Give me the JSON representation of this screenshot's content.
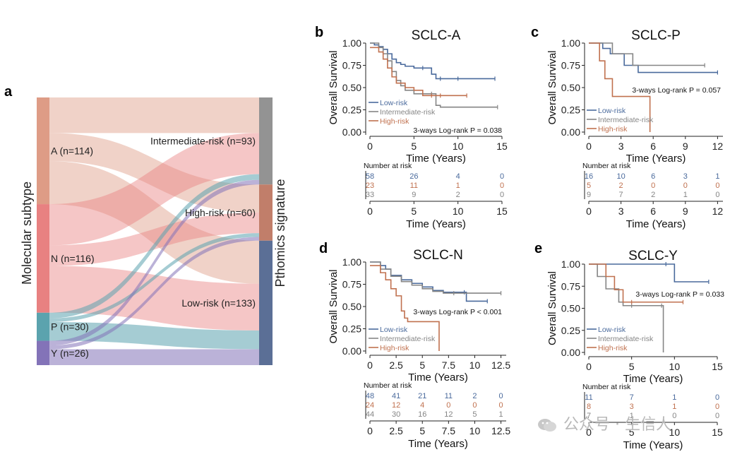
{
  "panel_a": {
    "letter": "a",
    "left_axis_label": "Molecular subtype",
    "right_axis_label": "Pthomics signature",
    "left_nodes": [
      {
        "label": "A (n=114)",
        "color": "#de9c86"
      },
      {
        "label": "N (n=116)",
        "color": "#e88181"
      },
      {
        "label": "P (n=30)",
        "color": "#5ba3ae"
      },
      {
        "label": "Y (n=26)",
        "color": "#8373b8"
      }
    ],
    "right_nodes": [
      {
        "label": "Intermediate-risk (n=93)",
        "color": "#939393"
      },
      {
        "label": "High-risk (n=60)",
        "color": "#c17e6a"
      },
      {
        "label": "Low-risk (n=133)",
        "color": "#5b6f96"
      }
    ],
    "flows": [
      {
        "from": 0,
        "to": 0,
        "value": 38
      },
      {
        "from": 0,
        "to": 1,
        "value": 30
      },
      {
        "from": 0,
        "to": 2,
        "value": 46
      },
      {
        "from": 1,
        "to": 0,
        "value": 44
      },
      {
        "from": 1,
        "to": 1,
        "value": 22
      },
      {
        "from": 1,
        "to": 2,
        "value": 50
      },
      {
        "from": 2,
        "to": 0,
        "value": 6
      },
      {
        "from": 2,
        "to": 1,
        "value": 4
      },
      {
        "from": 2,
        "to": 2,
        "value": 20
      },
      {
        "from": 3,
        "to": 0,
        "value": 5
      },
      {
        "from": 3,
        "to": 1,
        "value": 4
      },
      {
        "from": 3,
        "to": 2,
        "value": 17
      }
    ]
  },
  "km_common": {
    "ylabel": "Overall Survival",
    "xlabel": "Time (Years)",
    "risk_title": "Number at risk",
    "legend": [
      "Low-risk",
      "Intermediate-risk",
      "High-risk"
    ],
    "colors": {
      "low": "#4a6a9c",
      "intermediate": "#858585",
      "high": "#c0714f"
    },
    "yticks": [
      "0.00",
      "0.25",
      "0.50",
      "0.75",
      "1.00"
    ]
  },
  "chart_data": [
    {
      "type": "line",
      "panel": "b",
      "title": "SCLC-A",
      "xlim": [
        0,
        15
      ],
      "ylim": [
        0,
        1
      ],
      "xticks": [
        0,
        5,
        10,
        15
      ],
      "annotation": "3-ways Log-rank P = 0.038",
      "series": [
        {
          "name": "Low-risk",
          "x": [
            0,
            0.5,
            1,
            1.5,
            2,
            2.5,
            3,
            3.5,
            4,
            5,
            6,
            7,
            7.5,
            8,
            10,
            14.2
          ],
          "y": [
            1,
            0.98,
            0.96,
            0.93,
            0.88,
            0.82,
            0.78,
            0.76,
            0.74,
            0.72,
            0.72,
            0.65,
            0.6,
            0.6,
            0.6,
            0.6
          ]
        },
        {
          "name": "Intermediate-risk",
          "x": [
            0,
            1,
            1.5,
            2,
            2.5,
            3,
            3.5,
            4,
            5,
            6,
            7,
            7.5,
            8,
            14.5
          ],
          "y": [
            1,
            0.95,
            0.88,
            0.8,
            0.68,
            0.58,
            0.52,
            0.47,
            0.43,
            0.43,
            0.43,
            0.3,
            0.28,
            0.28
          ]
        },
        {
          "name": "High-risk",
          "x": [
            0,
            1,
            1.5,
            2,
            2.5,
            3,
            4,
            5,
            6,
            7,
            8,
            11
          ],
          "y": [
            0.95,
            0.9,
            0.82,
            0.72,
            0.62,
            0.55,
            0.5,
            0.47,
            0.41,
            0.41,
            0.41,
            0.41
          ]
        }
      ],
      "risk_table": {
        "times": [
          0,
          5,
          10,
          15
        ],
        "rows": [
          [
            58,
            26,
            4,
            0
          ],
          [
            23,
            11,
            1,
            0
          ],
          [
            33,
            9,
            2,
            0
          ]
        ]
      }
    },
    {
      "type": "line",
      "panel": "c",
      "title": "SCLC-P",
      "xlim": [
        0,
        12.5
      ],
      "ylim": [
        0,
        1
      ],
      "xticks": [
        0,
        3,
        6,
        9,
        12
      ],
      "annotation": "3-ways Log-rank P = 0.057",
      "series": [
        {
          "name": "Low-risk",
          "x": [
            0,
            1.3,
            2,
            3.3,
            4.6,
            12
          ],
          "y": [
            1,
            0.94,
            0.88,
            0.75,
            0.67,
            0.67
          ]
        },
        {
          "name": "Intermediate-risk",
          "x": [
            0,
            2.2,
            4.1,
            10.8
          ],
          "y": [
            1,
            0.88,
            0.75,
            0.75
          ]
        },
        {
          "name": "High-risk",
          "x": [
            0,
            1,
            1.5,
            2.2,
            5.7
          ],
          "y": [
            1,
            0.8,
            0.6,
            0.4,
            0
          ]
        }
      ],
      "risk_table": {
        "times": [
          0,
          3,
          6,
          9,
          12
        ],
        "rows": [
          [
            16,
            10,
            6,
            3,
            1
          ],
          [
            5,
            2,
            0,
            0,
            0
          ],
          [
            9,
            7,
            2,
            1,
            0
          ]
        ]
      }
    },
    {
      "type": "line",
      "panel": "d",
      "title": "SCLC-N",
      "xlim": [
        0,
        13
      ],
      "ylim": [
        0,
        1
      ],
      "xticks": [
        0,
        2.5,
        5,
        7.5,
        10,
        12.5
      ],
      "annotation": "3-ways Log-rank P < 0.001",
      "series": [
        {
          "name": "Low-risk",
          "x": [
            0,
            1,
            1.5,
            2,
            3,
            4,
            5,
            6,
            7,
            9,
            9.2,
            11.2
          ],
          "y": [
            1,
            0.96,
            0.92,
            0.85,
            0.8,
            0.76,
            0.72,
            0.68,
            0.66,
            0.66,
            0.56,
            0.56
          ]
        },
        {
          "name": "Intermediate-risk",
          "x": [
            0,
            1,
            2,
            3,
            4,
            5,
            6,
            7,
            8,
            12.5
          ],
          "y": [
            1,
            0.92,
            0.84,
            0.78,
            0.74,
            0.7,
            0.67,
            0.65,
            0.65,
            0.65
          ]
        },
        {
          "name": "High-risk",
          "x": [
            0,
            1,
            1.5,
            2,
            2.5,
            3,
            3.3,
            3.6,
            6.6
          ],
          "y": [
            0.96,
            0.88,
            0.8,
            0.7,
            0.62,
            0.45,
            0.37,
            0.33,
            0
          ]
        }
      ],
      "risk_table": {
        "times": [
          0,
          2.5,
          5,
          7.5,
          10,
          12.5
        ],
        "rows": [
          [
            48,
            41,
            21,
            11,
            2,
            0
          ],
          [
            24,
            12,
            4,
            0,
            0,
            0
          ],
          [
            44,
            30,
            16,
            12,
            5,
            1
          ]
        ]
      }
    },
    {
      "type": "line",
      "panel": "e",
      "title": "SCLC-Y",
      "xlim": [
        0,
        15
      ],
      "ylim": [
        0,
        1
      ],
      "xticks": [
        0,
        5,
        10,
        15
      ],
      "annotation": "3-ways Log-rank P = 0.033",
      "series": [
        {
          "name": "Low-risk",
          "x": [
            0,
            9,
            10,
            14
          ],
          "y": [
            1,
            1,
            0.8,
            0.8
          ]
        },
        {
          "name": "Intermediate-risk",
          "x": [
            0,
            1,
            2,
            3.5,
            4,
            5,
            8.5,
            8.7
          ],
          "y": [
            1,
            0.86,
            0.72,
            0.57,
            0.53,
            0.53,
            0.53,
            0
          ]
        },
        {
          "name": "High-risk",
          "x": [
            0,
            2,
            3,
            4,
            5,
            11
          ],
          "y": [
            1,
            0.86,
            0.71,
            0.57,
            0.57,
            0.57
          ]
        }
      ],
      "risk_table": {
        "times": [
          0,
          5,
          10,
          15
        ],
        "rows": [
          [
            11,
            7,
            1,
            0
          ],
          [
            8,
            3,
            1,
            0
          ],
          [
            7,
            1,
            0,
            0
          ]
        ]
      }
    }
  ],
  "watermark": "公众号 · 生信人"
}
